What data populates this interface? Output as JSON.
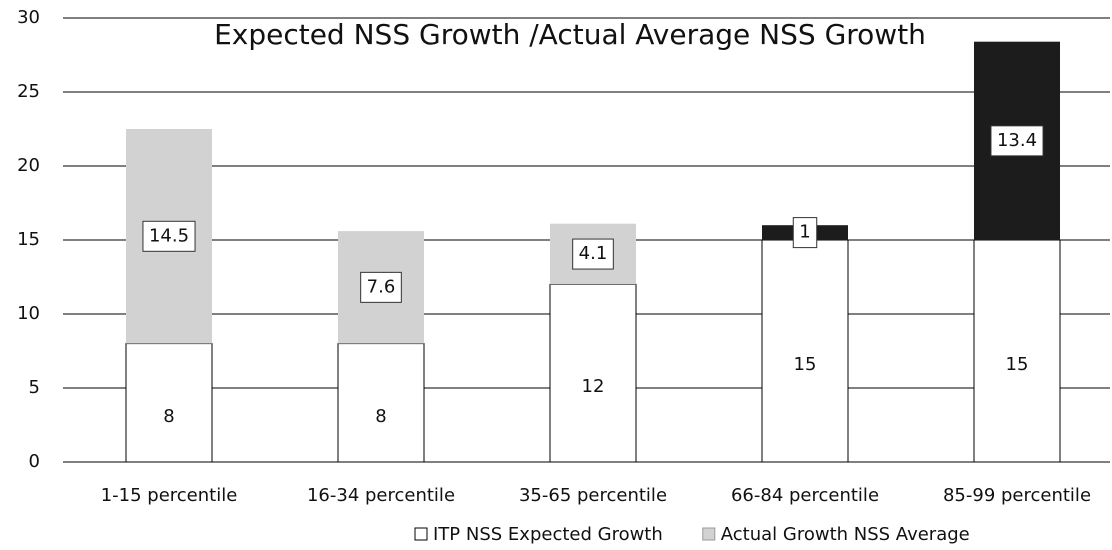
{
  "chart_data": {
    "type": "stacked_bar",
    "title": "Expected NSS Growth /Actual Average NSS Growth",
    "categories": [
      "1-15 percentile",
      "16-34 percentile",
      "35-65 percentile",
      "66-84 percentile",
      "85-99 percentile"
    ],
    "series": [
      {
        "name": "ITP NSS  Expected Growth",
        "color": "#ffffff",
        "values": [
          8,
          8,
          12,
          15,
          15
        ]
      },
      {
        "name": "Actual Growth NSS Average",
        "color": "#d2d2d2",
        "colors": [
          "#d2d2d2",
          "#d2d2d2",
          "#d2d2d2",
          "#1c1c1c",
          "#1c1c1c"
        ],
        "values": [
          14.5,
          7.6,
          4.1,
          1,
          13.4
        ]
      }
    ],
    "ylim": [
      0,
      30
    ],
    "yticks": [
      0,
      5,
      10,
      15,
      20,
      25,
      30
    ],
    "grid": true,
    "legend": "bottom"
  }
}
